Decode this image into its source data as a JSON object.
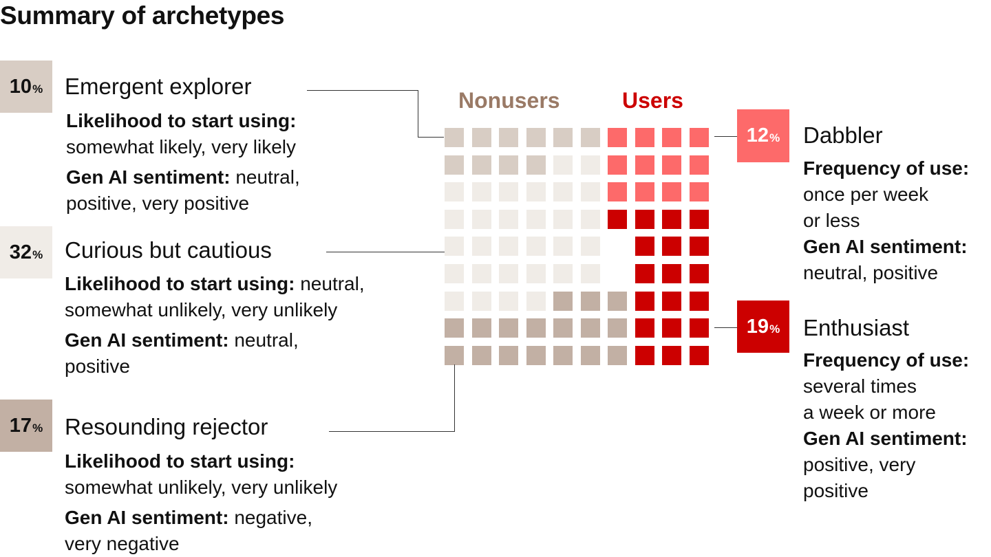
{
  "title": "Summary of archetypes",
  "group_labels": {
    "nonusers": "Nonusers",
    "users": "Users"
  },
  "pct_sign": "%",
  "colors": {
    "emergent": "#d8cdc4",
    "curious": "#f0ece7",
    "rejector": "#c2b0a4",
    "dabbler": "#fd6a6a",
    "enthusiast": "#cc0000",
    "nonusers_label": "#9a7a66",
    "users_label": "#cc0000"
  },
  "archetypes": {
    "emergent": {
      "pct": "10",
      "name": "Emergent explorer",
      "line1_bold": "Likelihood to start using:",
      "line1_rest": "",
      "line2": "somewhat likely, very likely",
      "line3_bold": "Gen AI sentiment:",
      "line3_rest": " neutral,",
      "line4": "positive, very positive"
    },
    "curious": {
      "pct": "32",
      "name": "Curious but cautious",
      "line1_bold": "Likelihood to start using:",
      "line1_rest": " neutral,",
      "line2": "somewhat unlikely, very unlikely",
      "line3_bold": "Gen AI sentiment:",
      "line3_rest": " neutral,",
      "line4": "positive"
    },
    "rejector": {
      "pct": "17",
      "name": "Resounding rejector",
      "line1_bold": "Likelihood to start using:",
      "line1_rest": "",
      "line2": "somewhat unlikely, very unlikely",
      "line3_bold": "Gen AI sentiment:",
      "line3_rest": " negative,",
      "line4": "very negative"
    },
    "dabbler": {
      "pct": "12",
      "name": "Dabbler",
      "line1_bold": "Frequency of use:",
      "line2": "once per week",
      "line3": "or less",
      "line4_bold": "Gen AI sentiment:",
      "line5": "neutral, positive",
      "line6": ""
    },
    "enthusiast": {
      "pct": "19",
      "name": "Enthusiast",
      "line1_bold": "Frequency of use:",
      "line2": "several times",
      "line3": "a week or more",
      "line4_bold": "Gen AI sentiment:",
      "line5": "positive, very",
      "line6": "positive"
    }
  },
  "chart_data": {
    "type": "waffle",
    "title": "Summary of archetypes",
    "groups": [
      {
        "name": "Nonusers",
        "segments": [
          {
            "label": "Emergent explorer",
            "value": 10
          },
          {
            "label": "Curious but cautious",
            "value": 32
          },
          {
            "label": "Resounding rejector",
            "value": 17
          }
        ]
      },
      {
        "name": "Users",
        "segments": [
          {
            "label": "Dabbler",
            "value": 12
          },
          {
            "label": "Enthusiast",
            "value": 19
          }
        ]
      }
    ],
    "grid": {
      "nonusers_cells": [
        "EEEEEE",
        "EEEECC",
        "CCCCCC",
        "CCCCCC",
        "CCCCCC",
        "CCCCCC",
        "CCCCRRR",
        "RRRRRRR",
        "RRRRRRR"
      ],
      "users_cells": [
        "DDDD",
        "DDDD",
        "DDDD",
        "NNNN",
        "NNN",
        "NNN",
        "NNN",
        "NNN",
        "NNN"
      ]
    }
  }
}
